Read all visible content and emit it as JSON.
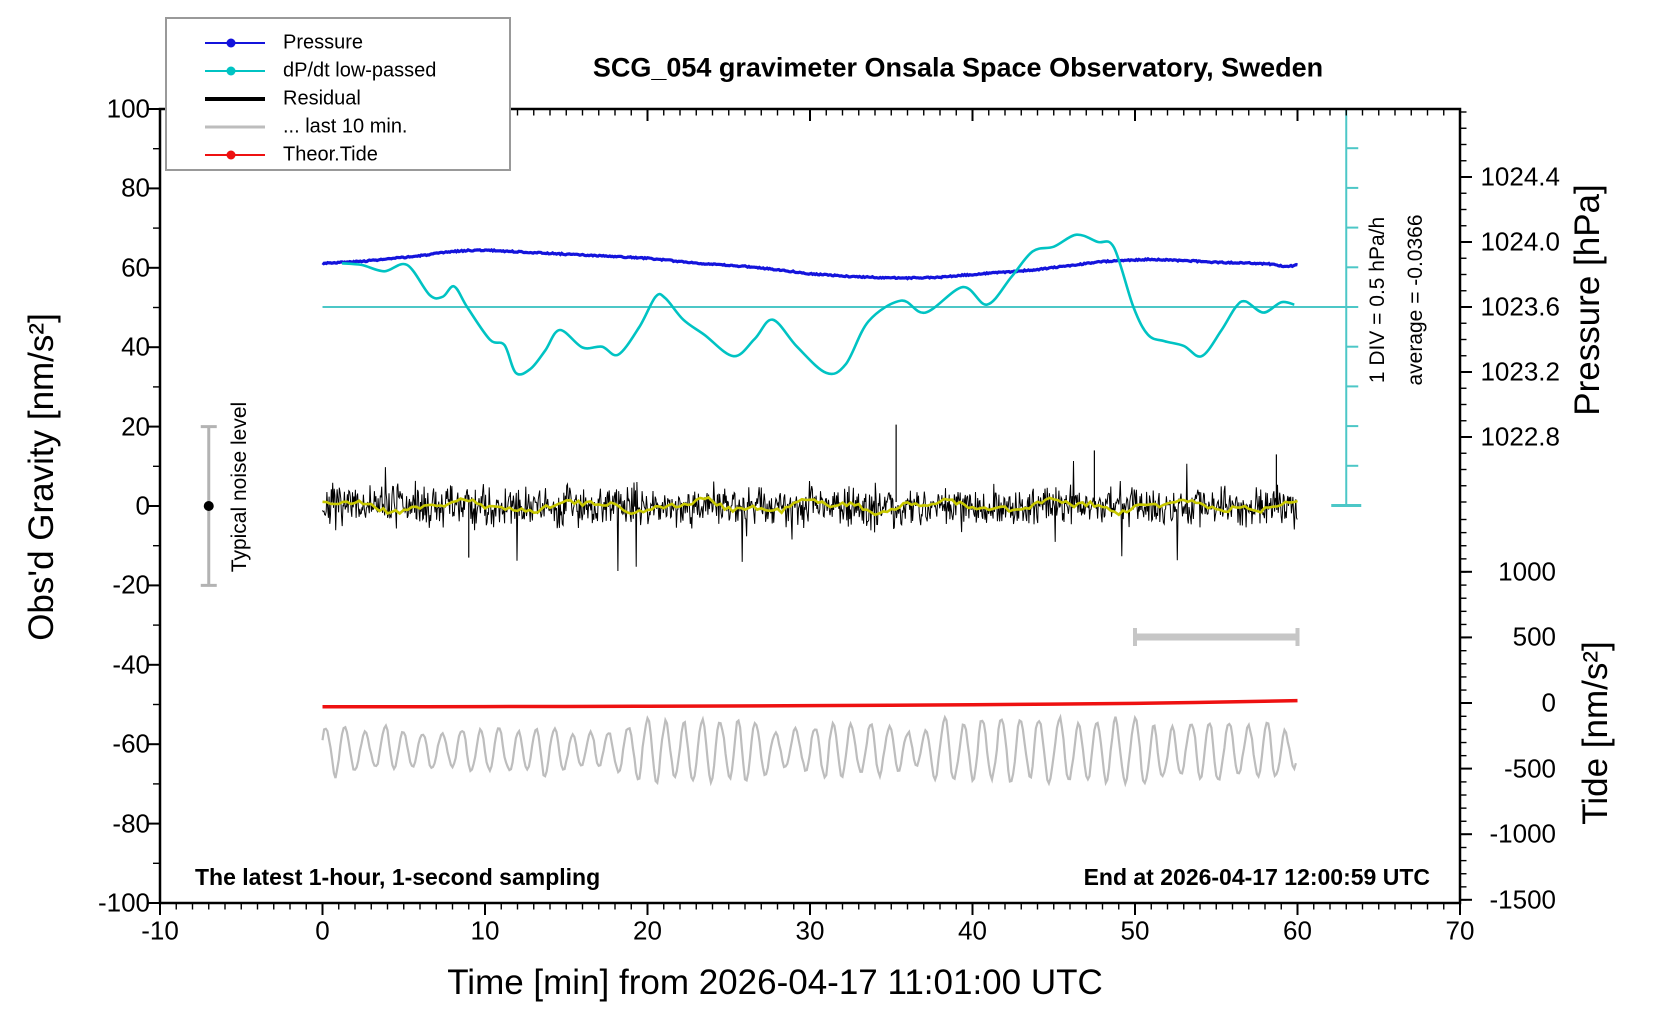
{
  "title": "SCG_054 gravimeter Onsala Space Observatory, Sweden",
  "annotations": {
    "sampling_note": "The latest 1-hour, 1-second sampling",
    "end_note": "End at 2026-04-17 12:00:59 UTC",
    "div_note": "1 DIV = 0.5 hPa/h",
    "average_note": "average = -0.0366",
    "noise_note": "Typical noise level"
  },
  "axes": {
    "x": {
      "label": "Time [min] from 2026-04-17 11:01:00 UTC",
      "ticks": [
        "-10",
        "0",
        "10",
        "20",
        "30",
        "40",
        "50",
        "60",
        "70"
      ],
      "minor_step_min": 1
    },
    "gravity": {
      "label": "Obs'd Gravity [nm/s²]",
      "ticks": [
        "100",
        "80",
        "60",
        "40",
        "20",
        "0",
        "-20",
        "-40",
        "-60",
        "-80",
        "-100"
      ]
    },
    "pressure": {
      "label": "Pressure [hPa]",
      "ticks": [
        "1024.4",
        "1024.0",
        "1023.6",
        "1023.2",
        "1022.8"
      ]
    },
    "tide": {
      "label": "Tide [nm/s²]",
      "ticks": [
        "1000",
        "500",
        "0",
        "-500",
        "-1000",
        "-1500"
      ]
    }
  },
  "legend": [
    {
      "label": "Pressure",
      "color": "#1414dc",
      "dot": true,
      "weight": 2
    },
    {
      "label": "dP/dt low-passed",
      "color": "#00c3c3",
      "dot": true,
      "weight": 2
    },
    {
      "label": "Residual",
      "color": "#000000",
      "dot": false,
      "weight": 4
    },
    {
      "label": "... last 10 min.",
      "color": "#bdbdbd",
      "dot": false,
      "weight": 3
    },
    {
      "label": "Theor.Tide",
      "color": "#ee1111",
      "dot": true,
      "weight": 2
    }
  ],
  "chart_data": {
    "type": "line",
    "x_unit": "minutes",
    "x_range": [
      -10,
      70
    ],
    "gravity_axis_range": [
      -100,
      100
    ],
    "pressure_axis_range_ticks": [
      1022.8,
      1024.4
    ],
    "tide_axis_range": [
      -1500,
      1000
    ],
    "series": [
      {
        "name": "Pressure",
        "axis": "pressure",
        "unit": "hPa",
        "color": "#1414dc",
        "points": [
          [
            0,
            1023.87
          ],
          [
            2,
            1023.878
          ],
          [
            4,
            1023.895
          ],
          [
            6,
            1023.915
          ],
          [
            8,
            1023.942
          ],
          [
            9,
            1023.948
          ],
          [
            10,
            1023.95
          ],
          [
            12,
            1023.94
          ],
          [
            14,
            1023.93
          ],
          [
            16,
            1023.92
          ],
          [
            18,
            1023.91
          ],
          [
            20,
            1023.9
          ],
          [
            22,
            1023.88
          ],
          [
            24,
            1023.862
          ],
          [
            26,
            1023.85
          ],
          [
            28,
            1023.83
          ],
          [
            30,
            1023.805
          ],
          [
            32,
            1023.79
          ],
          [
            34,
            1023.782
          ],
          [
            36,
            1023.778
          ],
          [
            38,
            1023.783
          ],
          [
            40,
            1023.8
          ],
          [
            42,
            1023.815
          ],
          [
            44,
            1023.83
          ],
          [
            46,
            1023.855
          ],
          [
            48,
            1023.88
          ],
          [
            50,
            1023.89
          ],
          [
            51,
            1023.893
          ],
          [
            53,
            1023.886
          ],
          [
            55,
            1023.875
          ],
          [
            57,
            1023.87
          ],
          [
            58.2,
            1023.866
          ],
          [
            59.3,
            1023.848
          ],
          [
            60,
            1023.858
          ]
        ]
      },
      {
        "name": "dP/dt low-passed",
        "axis": "dpdt",
        "unit": "hPa/h",
        "color": "#00c3c3",
        "zero_plotted_at_gravity": 50,
        "div_value_hPa_per_h": 0.5,
        "average_hPa_per_h": -0.0366,
        "points": [
          [
            1.2,
            0.55
          ],
          [
            2.4,
            0.53
          ],
          [
            3.8,
            0.45
          ],
          [
            5.2,
            0.53
          ],
          [
            6.6,
            0.15
          ],
          [
            7.4,
            0.13
          ],
          [
            8.1,
            0.26
          ],
          [
            8.9,
            0
          ],
          [
            10.3,
            -0.41
          ],
          [
            11.2,
            -0.48
          ],
          [
            11.9,
            -0.83
          ],
          [
            12.8,
            -0.78
          ],
          [
            13.7,
            -0.55
          ],
          [
            14.6,
            -0.29
          ],
          [
            16,
            -0.51
          ],
          [
            17.2,
            -0.5
          ],
          [
            18.2,
            -0.6
          ],
          [
            19.5,
            -0.25
          ],
          [
            20.5,
            0.13
          ],
          [
            21.1,
            0.11
          ],
          [
            22.2,
            -0.16
          ],
          [
            23.5,
            -0.35
          ],
          [
            25.3,
            -0.62
          ],
          [
            26.6,
            -0.4
          ],
          [
            27.7,
            -0.16
          ],
          [
            29.2,
            -0.5
          ],
          [
            31,
            -0.83
          ],
          [
            32.2,
            -0.72
          ],
          [
            33.6,
            -0.18
          ],
          [
            35.6,
            0.08
          ],
          [
            37.1,
            -0.07
          ],
          [
            39.4,
            0.25
          ],
          [
            40.9,
            0.03
          ],
          [
            42.4,
            0.38
          ],
          [
            43.7,
            0.7
          ],
          [
            45,
            0.76
          ],
          [
            46.4,
            0.91
          ],
          [
            47.7,
            0.82
          ],
          [
            48.7,
            0.75
          ],
          [
            49.9,
            0
          ],
          [
            50.8,
            -0.35
          ],
          [
            51.8,
            -0.43
          ],
          [
            53,
            -0.49
          ],
          [
            54.1,
            -0.62
          ],
          [
            55.3,
            -0.3
          ],
          [
            56.2,
            0
          ],
          [
            56.8,
            0.07
          ],
          [
            57.9,
            -0.07
          ],
          [
            59,
            0.06
          ],
          [
            59.8,
            0.03
          ]
        ]
      },
      {
        "name": "Residual",
        "axis": "gravity",
        "unit": "nm/s2",
        "color": "#000000",
        "description": "1-second residual noise centred on 0",
        "band": {
          "center": 0,
          "typical_peak": 8,
          "occasional_spike": 20,
          "span_minutes": [
            0,
            60
          ]
        },
        "forced_spikes": [
          [
            9.0,
            -13
          ],
          [
            35.3,
            20.5
          ],
          [
            47.5,
            14
          ],
          [
            58.7,
            13
          ]
        ],
        "smoothed_overlay": {
          "color": "#c8c800",
          "amplitude": 1.6
        }
      },
      {
        "name": "Residual last 10 min (displaced)",
        "axis": "gravity",
        "unit": "nm/s2",
        "color": "#bdbdbd",
        "band": {
          "center": -61.5,
          "amplitude_range": [
            4,
            8.5
          ],
          "quasi_period_min": 1.2,
          "span_minutes": [
            0,
            60
          ]
        }
      },
      {
        "name": "Theor.Tide",
        "axis": "tide",
        "unit": "nm/s2",
        "color": "#ee1111",
        "points": [
          [
            0,
            -29
          ],
          [
            10,
            -27.5
          ],
          [
            20,
            -24.5
          ],
          [
            30,
            -20
          ],
          [
            40,
            -13
          ],
          [
            50,
            -3
          ],
          [
            60,
            18
          ]
        ]
      }
    ],
    "markers": {
      "noise_level_bar": {
        "x_min": -7,
        "gravity_range": [
          -20,
          20
        ],
        "dot_at": 0
      },
      "last10_span_bar": {
        "time_range": [
          50,
          60
        ],
        "gravity_level": -33
      },
      "dpdt_zero_line_gravity": 50,
      "dpdt_scale_bar": {
        "at_time_min": 63,
        "divisions": 10,
        "div_value_hPa_per_h": 0.5
      }
    }
  }
}
